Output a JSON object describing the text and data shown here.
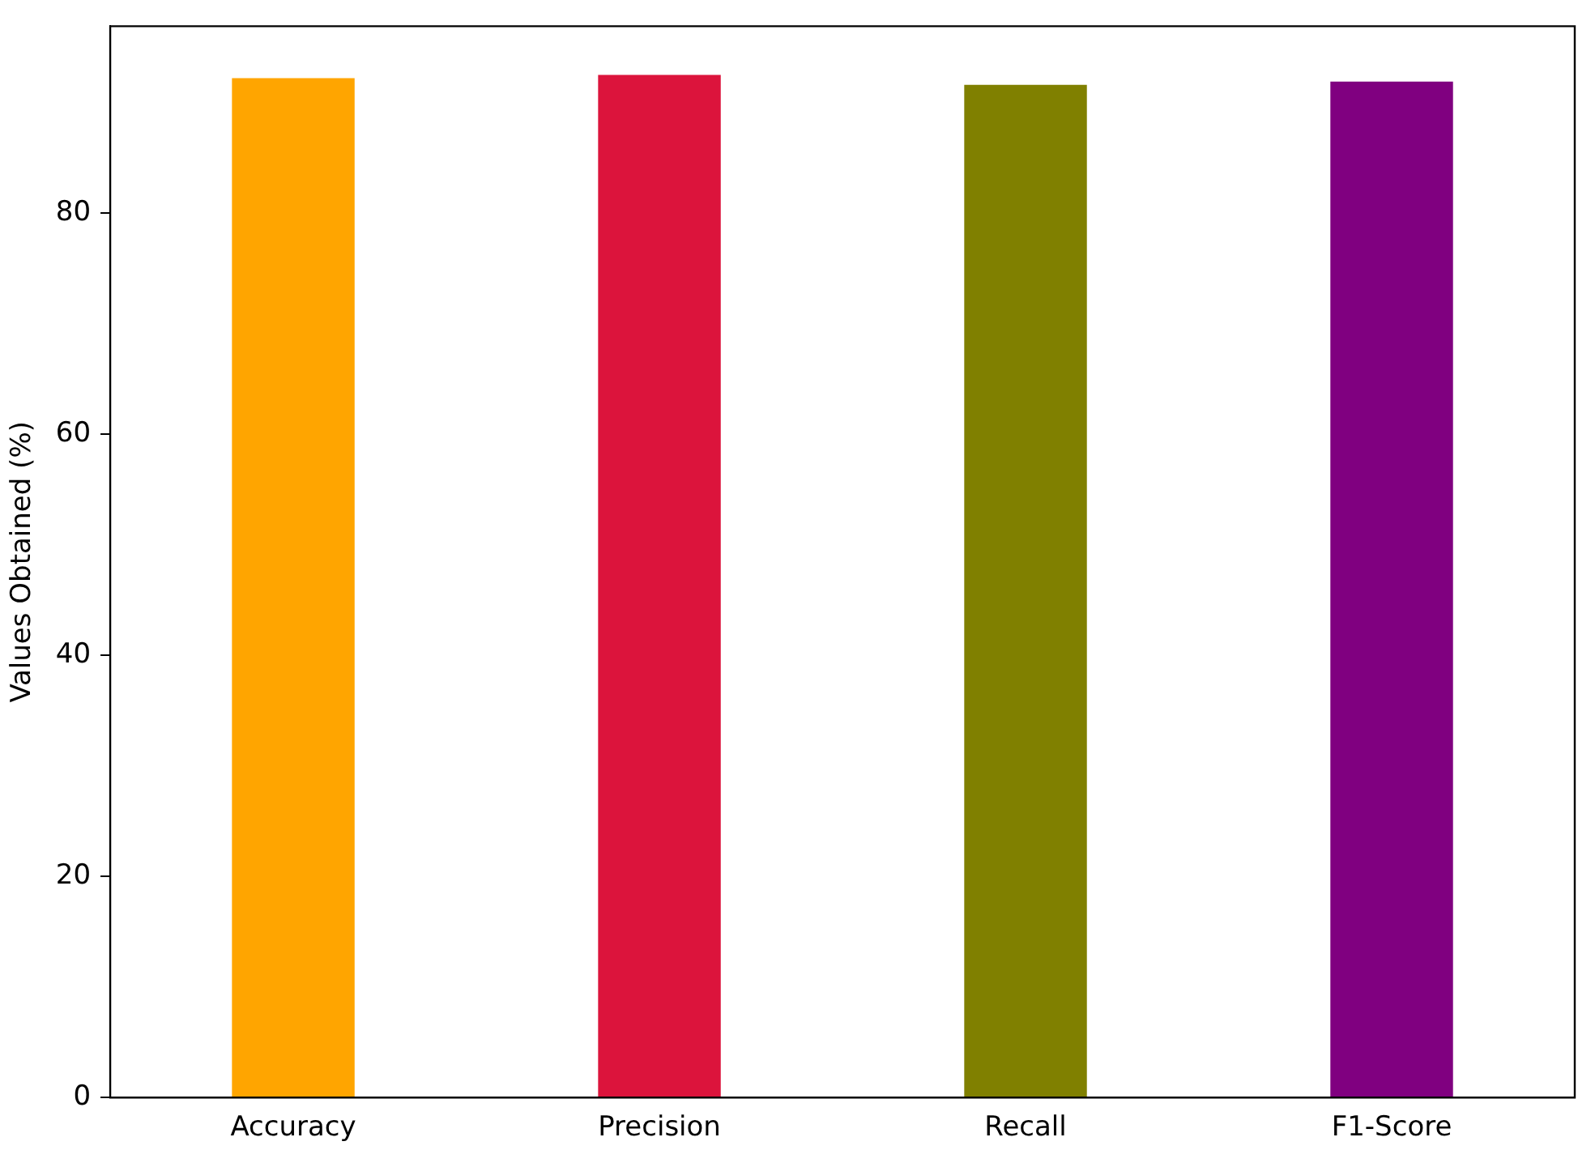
{
  "chart_data": {
    "type": "bar",
    "ylabel": "Values Obtained (%)",
    "categories": [
      "Accuracy",
      "Precision",
      "Recall",
      "F1-Score"
    ],
    "values": [
      92.2,
      92.5,
      91.6,
      91.9
    ],
    "colors": [
      "#ffa500",
      "#dc143c",
      "#808000",
      "#800080"
    ],
    "ylim": [
      0,
      96.9
    ],
    "yticks": [
      0,
      20,
      40,
      60,
      80
    ],
    "grid": false,
    "legend": false
  }
}
